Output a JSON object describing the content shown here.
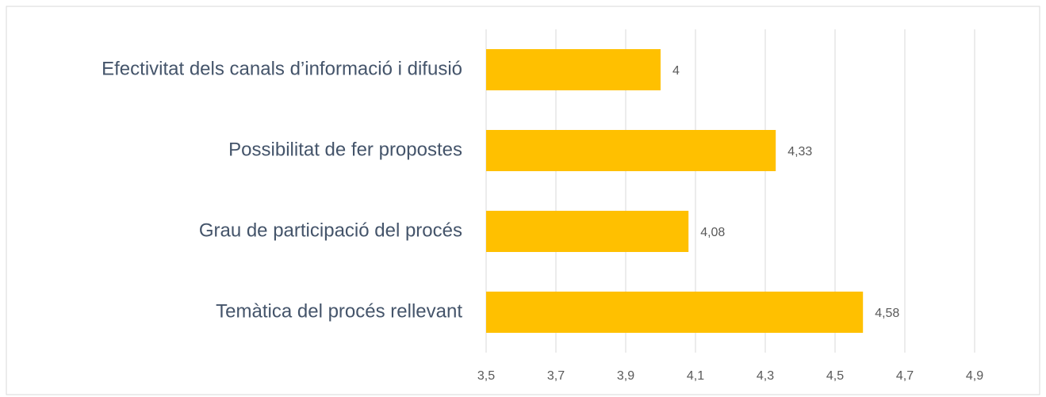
{
  "chart_data": {
    "type": "bar",
    "orientation": "horizontal",
    "categories": [
      "Efectivitat dels canals d’informació i difusió",
      "Possibilitat de fer propostes",
      "Grau de participació del procés",
      "Temàtica del procés rellevant"
    ],
    "values": [
      4,
      4.33,
      4.08,
      4.58
    ],
    "value_labels": [
      "4",
      "4,33",
      "4,08",
      "4,58"
    ],
    "color": "#ffc000",
    "xlim": [
      3.5,
      4.9
    ],
    "xticks": [
      {
        "value": 3.5,
        "label": "3,5"
      },
      {
        "value": 3.7,
        "label": "3,7"
      },
      {
        "value": 3.9,
        "label": "3,9"
      },
      {
        "value": 4.1,
        "label": "4,1"
      },
      {
        "value": 4.3,
        "label": "4,3"
      },
      {
        "value": 4.5,
        "label": "4,5"
      },
      {
        "value": 4.7,
        "label": "4,7"
      },
      {
        "value": 4.9,
        "label": "4,9"
      }
    ],
    "grid": true
  }
}
